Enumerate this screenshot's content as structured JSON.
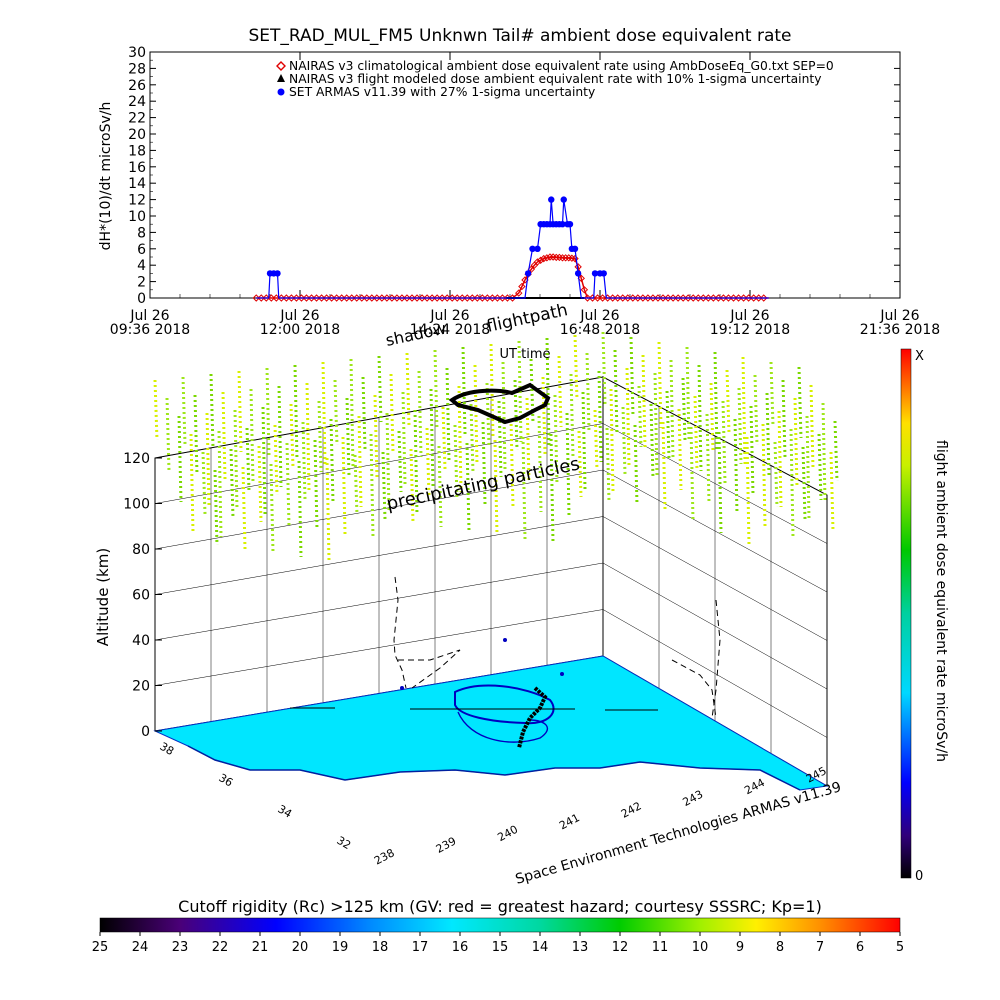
{
  "colors": {
    "climatological": "#e00000",
    "armas": "#0000ff",
    "flight_modeled": "#000000",
    "ground": "#00e0ff",
    "particles": "#a8e820",
    "flightpath": "#000000"
  },
  "chart_data": [
    {
      "type": "scatter",
      "title": "SET_RAD_MUL_FM5 Unknwn Tail#  ambient dose equivalent rate",
      "xlabel": "UT time",
      "ylabel": "dH*(10)/dt microSv/h",
      "ylim": [
        0,
        30
      ],
      "y_ticks": [
        0,
        2,
        4,
        6,
        8,
        10,
        12,
        14,
        16,
        18,
        20,
        22,
        24,
        26,
        28,
        30
      ],
      "xlim_hours": [
        9.6,
        21.6
      ],
      "x_ticks": [
        {
          "hour": 9.6,
          "day": "Jul 26",
          "time": "09:36 2018"
        },
        {
          "hour": 12.0,
          "day": "Jul 26",
          "time": "12:00 2018"
        },
        {
          "hour": 14.4,
          "day": "Jul 26",
          "time": "14:24 2018"
        },
        {
          "hour": 16.8,
          "day": "Jul 26",
          "time": "16:48 2018"
        },
        {
          "hour": 19.2,
          "day": "Jul 26",
          "time": "19:12 2018"
        },
        {
          "hour": 21.6,
          "day": "Jul 26",
          "time": "21:36 2018"
        }
      ],
      "legend_position": "top-right",
      "series": [
        {
          "name": "NAIRAS v3 climatological ambient dose equivalent rate using AmbDoseEq_G0.txt SEP=0",
          "marker": "diamond",
          "points": [
            [
              11.3,
              0
            ],
            [
              15.4,
              0
            ],
            [
              15.5,
              0.6
            ],
            [
              15.55,
              1.4
            ],
            [
              15.6,
              2.2
            ],
            [
              15.65,
              2.9
            ],
            [
              15.7,
              3.5
            ],
            [
              15.75,
              4.0
            ],
            [
              15.8,
              4.4
            ],
            [
              15.85,
              4.6
            ],
            [
              15.9,
              4.8
            ],
            [
              15.95,
              4.9
            ],
            [
              16.0,
              5.0
            ],
            [
              16.05,
              5.0
            ],
            [
              16.1,
              4.95
            ],
            [
              16.15,
              4.95
            ],
            [
              16.2,
              4.9
            ],
            [
              16.25,
              4.9
            ],
            [
              16.3,
              4.9
            ],
            [
              16.35,
              4.85
            ],
            [
              16.4,
              4.8
            ],
            [
              16.45,
              3.8
            ],
            [
              16.5,
              2.4
            ],
            [
              16.55,
              1.0
            ],
            [
              16.6,
              0
            ],
            [
              19.5,
              0
            ]
          ]
        },
        {
          "name": "NAIRAS v3 flight modeled dose ambient equivalent rate with 10% 1-sigma uncertainty",
          "marker": "triangle",
          "points": [
            [
              15.3,
              0
            ],
            [
              16.55,
              0
            ]
          ]
        },
        {
          "name": "SET ARMAS v11.39 with 27% 1-sigma uncertainty",
          "marker": "circle",
          "points": [
            [
              11.3,
              0
            ],
            [
              11.5,
              0
            ],
            [
              11.52,
              3
            ],
            [
              11.58,
              3
            ],
            [
              11.64,
              3
            ],
            [
              11.66,
              0
            ],
            [
              15.6,
              0
            ],
            [
              15.65,
              3
            ],
            [
              15.72,
              6
            ],
            [
              15.8,
              6
            ],
            [
              15.85,
              9
            ],
            [
              15.9,
              9
            ],
            [
              15.95,
              9
            ],
            [
              16.0,
              9
            ],
            [
              16.02,
              12
            ],
            [
              16.05,
              9
            ],
            [
              16.1,
              9
            ],
            [
              16.15,
              9
            ],
            [
              16.2,
              9
            ],
            [
              16.22,
              12
            ],
            [
              16.28,
              9
            ],
            [
              16.32,
              9
            ],
            [
              16.35,
              6
            ],
            [
              16.4,
              6
            ],
            [
              16.45,
              3
            ],
            [
              16.5,
              0
            ],
            [
              16.7,
              0
            ],
            [
              16.72,
              3
            ],
            [
              16.8,
              3
            ],
            [
              16.86,
              3
            ],
            [
              16.9,
              0
            ],
            [
              19.5,
              0
            ]
          ]
        }
      ]
    },
    {
      "type": "scatter",
      "xlabel": "Space Environment Technologies ARMAS v11.39",
      "ylabel": "Altitude (km)",
      "z_ticks": [
        0,
        20,
        40,
        60,
        80,
        100,
        120
      ],
      "longitude_ticks": [
        "238",
        "239",
        "240",
        "241",
        "242",
        "243",
        "244",
        "245"
      ],
      "latitude_ticks": [
        "32",
        "34",
        "36",
        "38"
      ],
      "annotations": [
        "shadow",
        "flightpath",
        "precipitating particles"
      ],
      "colorbar": {
        "label": "flight ambient dose equivalent rate microSv/h",
        "min_label": "0",
        "max_label": "X",
        "position": "right"
      }
    },
    {
      "type": "heatmap",
      "title": "Cutoff rigidity (Rc) >125 km (GV: red = greatest hazard; courtesy SSSRC; Kp=1)",
      "tick_labels": [
        "25",
        "24",
        "23",
        "22",
        "21",
        "20",
        "19",
        "18",
        "17",
        "16",
        "15",
        "14",
        "13",
        "12",
        "11",
        "10",
        "9",
        "8",
        "7",
        "6",
        "5"
      ],
      "position": "bottom"
    }
  ]
}
